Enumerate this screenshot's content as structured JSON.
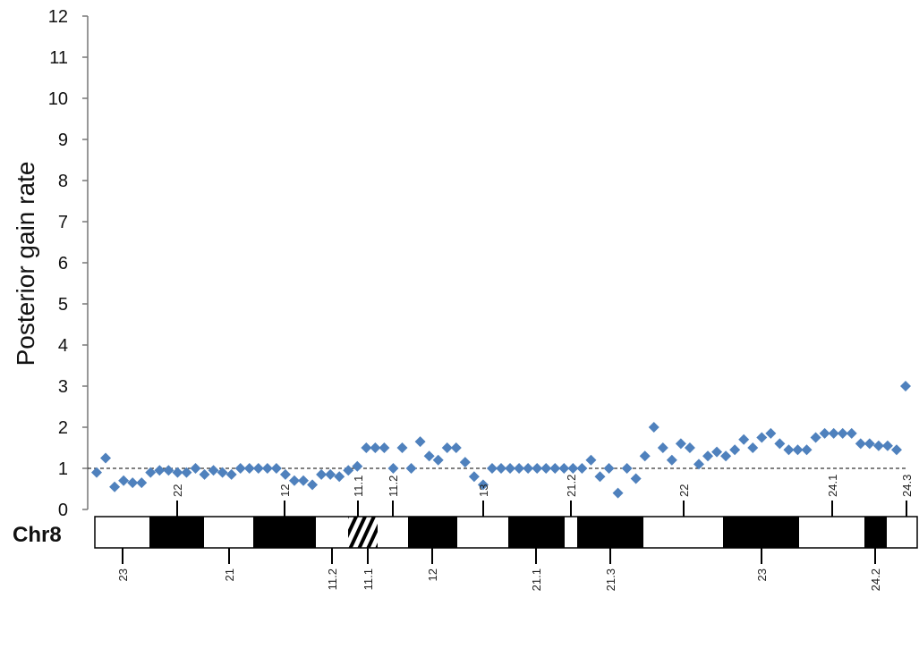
{
  "chart_data": {
    "type": "scatter",
    "title": "",
    "xlabel": "",
    "ylabel": "Posterior gain rate",
    "ylim": [
      0,
      12
    ],
    "yticks": [
      "0",
      "1",
      "2",
      "3",
      "4",
      "5",
      "6",
      "7",
      "8",
      "9",
      "10",
      "11",
      "12"
    ],
    "reference_line": 1,
    "grid": false,
    "marker": "diamond",
    "color": "#4F81BD",
    "series": [
      {
        "values": [
          0.9,
          1.25,
          0.55,
          0.7,
          0.65,
          0.65,
          0.9,
          0.95,
          0.95,
          0.9,
          0.9,
          1.0,
          0.85,
          0.95,
          0.9,
          0.85,
          1.0,
          1.0,
          1.0,
          1.0,
          1.0,
          0.85,
          0.7,
          0.7,
          0.6,
          0.85,
          0.85,
          0.8,
          0.95,
          1.05,
          1.5,
          1.5,
          1.5,
          1.0,
          1.5,
          1.0,
          1.65,
          1.3,
          1.2,
          1.5,
          1.5,
          1.15,
          0.8,
          0.6,
          1.0,
          1.0,
          1.0,
          1.0,
          1.0,
          1.0,
          1.0,
          1.0,
          1.0,
          1.0,
          1.0,
          1.2,
          0.8,
          1.0,
          0.4,
          1.0,
          0.75,
          1.3,
          2.0,
          1.5,
          1.2,
          1.6,
          1.5,
          1.1,
          1.3,
          1.4,
          1.3,
          1.45,
          1.7,
          1.5,
          1.75,
          1.85,
          1.6,
          1.45,
          1.45,
          1.45,
          1.75,
          1.85,
          1.85,
          1.85,
          1.85,
          1.6,
          1.6,
          1.55,
          1.55,
          1.45,
          3.0
        ]
      }
    ]
  },
  "ideogram": {
    "chromosome": "Chr8",
    "top_band_labels": [
      "22",
      "12",
      "11.1",
      "11.2",
      "13",
      "21.2",
      "22",
      "24.1",
      "24.3"
    ],
    "bottom_band_labels": [
      "23",
      "21",
      "11.2",
      "11.1",
      "12",
      "21.1",
      "21.3",
      "23",
      "24.2"
    ],
    "band_fill": {
      "gpos": "#000000",
      "gneg": "#ffffff",
      "outline": "#000000"
    }
  }
}
